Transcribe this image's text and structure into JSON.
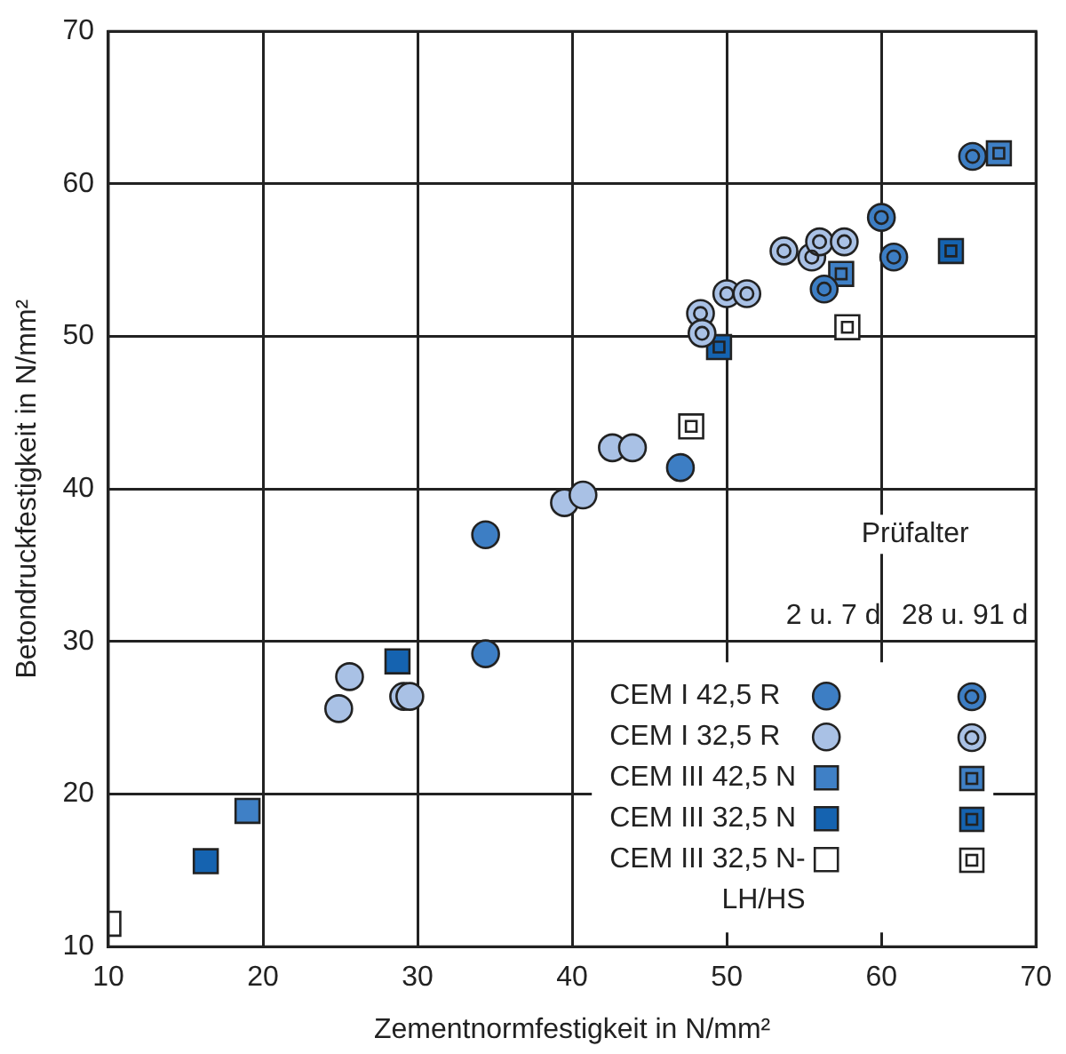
{
  "chart_data": {
    "type": "scatter",
    "xlabel": "Zementnormfestigkeit in N/mm²",
    "ylabel": "Betondruckfestigkeit in N/mm²",
    "xlim": [
      10,
      70
    ],
    "ylim": [
      10,
      70
    ],
    "xticks": [
      10,
      20,
      30,
      40,
      50,
      60,
      70
    ],
    "yticks": [
      10,
      20,
      30,
      40,
      50,
      60,
      70
    ],
    "grid": true,
    "legend": "bottom right",
    "legend_title": "Prüfalter",
    "annotations": [
      "2 u. 7 d",
      "28 u. 91 d"
    ],
    "series": [
      {
        "name": "CEM I 42,5 R",
        "color": "#3d7ec4",
        "marker": "circle",
        "x": [
          34.4,
          34.4,
          47.0
        ],
        "values": [
          29.2,
          37.0,
          41.4
        ]
      },
      {
        "name": "CEM I 32,5 R",
        "color": "#a9c1e5",
        "marker": "circle",
        "x": [
          24.9,
          25.6,
          29.1,
          29.5,
          39.5,
          40.7,
          42.6,
          43.9
        ],
        "values": [
          25.6,
          27.7,
          26.4,
          26.4,
          39.1,
          39.6,
          42.7,
          42.7
        ]
      },
      {
        "name": "CEM III 42,5 N",
        "color": "#3f80c6",
        "marker": "square",
        "x": [
          19.0
        ],
        "values": [
          18.9
        ]
      },
      {
        "name": "CEM III 32,5 N",
        "color": "#1563b0",
        "marker": "square",
        "x": [
          16.3,
          28.7
        ],
        "values": [
          15.6,
          28.7
        ]
      },
      {
        "name": "CEM III 32,5 N-LH/HS",
        "color": "#ffffff",
        "marker": "square",
        "x": [
          10.0
        ],
        "values": [
          11.5
        ]
      },
      {
        "color": "#3d7ec4",
        "marker": "circle",
        "x": [
          56.3,
          60.0,
          60.8,
          65.9
        ],
        "values": [
          53.1,
          57.8,
          55.2,
          61.8
        ]
      },
      {
        "color": "#a9c1e5",
        "marker": "circle",
        "x": [
          48.3,
          48.4,
          50.0,
          51.3,
          53.7,
          55.5,
          56.0,
          57.6
        ],
        "values": [
          51.5,
          50.2,
          52.8,
          52.8,
          55.6,
          55.2,
          56.2,
          56.2
        ]
      },
      {
        "color": "#3f80c6",
        "marker": "square",
        "x": [
          57.4,
          67.6
        ],
        "values": [
          54.1,
          62.0
        ]
      },
      {
        "color": "#1563b0",
        "marker": "square",
        "x": [
          49.5,
          64.5
        ],
        "values": [
          49.3,
          55.6
        ]
      },
      {
        "color": "#ffffff",
        "marker": "square",
        "x": [
          47.7,
          57.8
        ],
        "values": [
          44.1,
          50.6
        ]
      }
    ]
  }
}
